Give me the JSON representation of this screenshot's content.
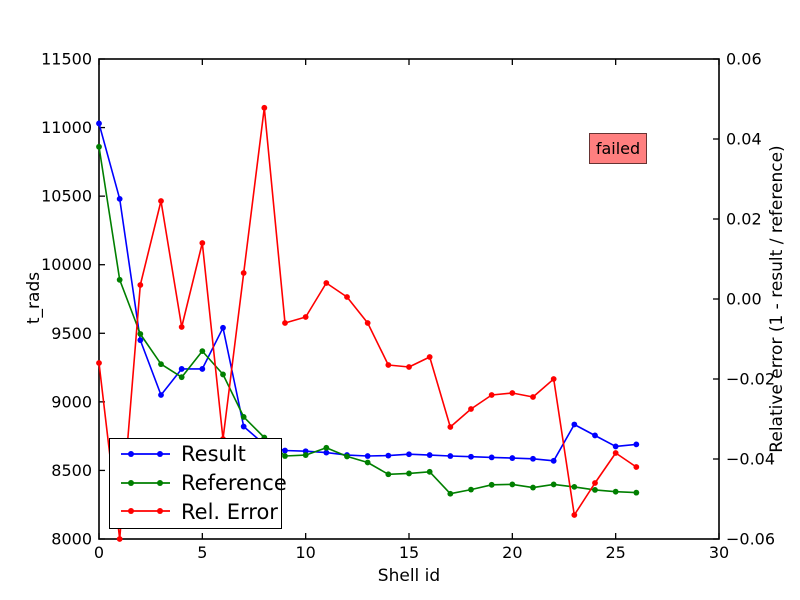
{
  "figure": {
    "background": "#ffffff",
    "annotation": {
      "failed_label": "failed",
      "fill": "rgba(255,0,0,0.5)",
      "border": "rgba(0,0,0,0.6)"
    }
  },
  "chart_data": {
    "type": "line",
    "title": "",
    "xlabel": "Shell id",
    "ylabel_left": "t_rads",
    "ylabel_right": "Relative error (1 - result / reference)",
    "xlim": [
      0,
      30
    ],
    "ylim_left": [
      8000,
      11500
    ],
    "ylim_right": [
      -0.06,
      0.06
    ],
    "x_ticks": [
      0,
      5,
      10,
      15,
      20,
      25,
      30
    ],
    "y_ticks_left": [
      8000,
      8500,
      9000,
      9500,
      10000,
      10500,
      11000,
      11500
    ],
    "y_ticks_right": [
      -0.06,
      -0.04,
      -0.02,
      0.0,
      0.02,
      0.04,
      0.06
    ],
    "grid": false,
    "legend_position": "lower left",
    "x": [
      0,
      1,
      2,
      3,
      4,
      5,
      6,
      7,
      8,
      9,
      10,
      11,
      12,
      13,
      14,
      15,
      16,
      17,
      18,
      19,
      20,
      21,
      22,
      23,
      24,
      25,
      26
    ],
    "series": [
      {
        "name": "Result",
        "color": "#0000ff",
        "axis": "left",
        "values": [
          11030,
          10480,
          9450,
          9050,
          9240,
          9240,
          9540,
          8820,
          8690,
          8645,
          8640,
          8630,
          8612,
          8605,
          8608,
          8618,
          8612,
          8605,
          8600,
          8595,
          8590,
          8585,
          8570,
          8835,
          8755,
          8675,
          8690
        ]
      },
      {
        "name": "Reference",
        "color": "#007f00",
        "axis": "left",
        "values": [
          10860,
          9890,
          9495,
          9275,
          9180,
          9370,
          9200,
          8890,
          8740,
          8605,
          8612,
          8665,
          8602,
          8558,
          8472,
          8478,
          8490,
          8330,
          8360,
          8395,
          8398,
          8375,
          8398,
          8380,
          8358,
          8345,
          8338
        ]
      },
      {
        "name": "Rel. Error",
        "color": "#ff0000",
        "axis": "right",
        "values": [
          -0.016,
          -0.06,
          0.0035,
          0.0245,
          -0.007,
          0.014,
          -0.035,
          0.0065,
          0.0478,
          -0.006,
          -0.0045,
          0.004,
          0.0005,
          -0.006,
          -0.0165,
          -0.017,
          -0.0145,
          -0.032,
          -0.0275,
          -0.024,
          -0.0235,
          -0.0245,
          -0.02,
          -0.054,
          -0.046,
          -0.0385,
          -0.042
        ]
      }
    ]
  }
}
